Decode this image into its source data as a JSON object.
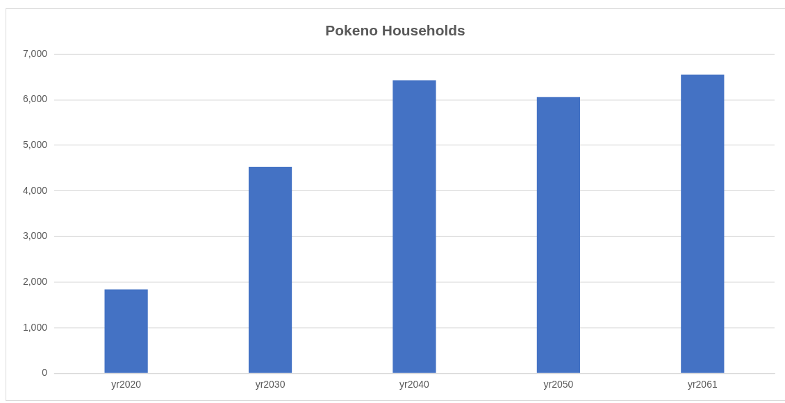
{
  "chart_data": {
    "type": "bar",
    "title": "Pokeno Households",
    "categories": [
      "yr2020",
      "yr2030",
      "yr2040",
      "yr2050",
      "yr2061"
    ],
    "values": [
      1840,
      4530,
      6430,
      6060,
      6550
    ],
    "color": "#4472c4",
    "ylim": [
      0,
      7000
    ],
    "yticks": [
      {
        "value": 0,
        "label": "0"
      },
      {
        "value": 1000,
        "label": "1,000"
      },
      {
        "value": 2000,
        "label": "2,000"
      },
      {
        "value": 3000,
        "label": "3,000"
      },
      {
        "value": 4000,
        "label": "4,000"
      },
      {
        "value": 5000,
        "label": "5,000"
      },
      {
        "value": 6000,
        "label": "6,000"
      },
      {
        "value": 7000,
        "label": "7,000"
      }
    ],
    "grid": "y"
  }
}
